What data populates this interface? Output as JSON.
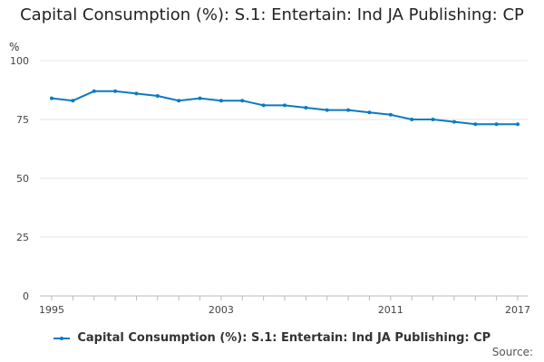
{
  "chart_data": {
    "type": "line",
    "title": "Capital Consumption (%): S.1: Entertain: Ind JA Publishing: CP",
    "ylabel": "%",
    "xlabel": "",
    "ylim": [
      0,
      100
    ],
    "yticks": [
      0,
      25,
      50,
      75,
      100
    ],
    "xlim": [
      1995,
      2017
    ],
    "xticks": [
      1995,
      2003,
      2011,
      2017
    ],
    "grid": true,
    "series": [
      {
        "name": "Capital Consumption (%): S.1: Entertain: Ind JA Publishing: CP",
        "color": "#0a7bbf",
        "x": [
          1995,
          1996,
          1997,
          1998,
          1999,
          2000,
          2001,
          2002,
          2003,
          2004,
          2005,
          2006,
          2007,
          2008,
          2009,
          2010,
          2011,
          2012,
          2013,
          2014,
          2015,
          2016,
          2017
        ],
        "values": [
          84,
          83,
          87,
          87,
          86,
          85,
          83,
          84,
          83,
          83,
          81,
          81,
          80,
          79,
          79,
          78,
          77,
          75,
          75,
          74,
          73,
          73,
          73
        ]
      }
    ],
    "legend": "bottom",
    "source_label": "Source:"
  }
}
